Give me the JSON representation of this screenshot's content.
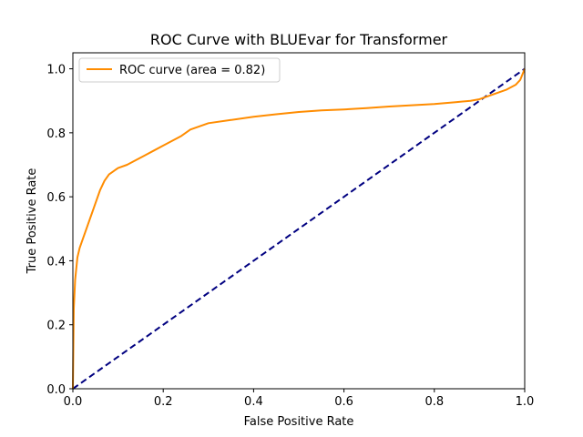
{
  "chart_data": {
    "type": "line",
    "title": "ROC Curve with BLUEvar for Transformer",
    "xlabel": "False Positive Rate",
    "ylabel": "True Positive Rate",
    "xlim": [
      0.0,
      1.0
    ],
    "ylim": [
      0.0,
      1.05
    ],
    "grid": false,
    "legend_position": "top-left",
    "x_ticks": [
      "0.0",
      "0.2",
      "0.4",
      "0.6",
      "0.8",
      "1.0"
    ],
    "y_ticks": [
      "0.0",
      "0.2",
      "0.4",
      "0.6",
      "0.8",
      "1.0"
    ],
    "series": [
      {
        "name": "ROC curve (area = 0.82)",
        "color": "#ff8c00",
        "style": "solid",
        "x": [
          0.0,
          0.002,
          0.005,
          0.01,
          0.015,
          0.02,
          0.03,
          0.04,
          0.05,
          0.06,
          0.07,
          0.08,
          0.09,
          0.1,
          0.12,
          0.14,
          0.16,
          0.18,
          0.2,
          0.22,
          0.24,
          0.25,
          0.26,
          0.28,
          0.3,
          0.35,
          0.4,
          0.45,
          0.5,
          0.55,
          0.6,
          0.65,
          0.7,
          0.75,
          0.8,
          0.85,
          0.88,
          0.9,
          0.92,
          0.94,
          0.96,
          0.98,
          0.99,
          1.0
        ],
        "y": [
          0.0,
          0.25,
          0.34,
          0.41,
          0.44,
          0.46,
          0.5,
          0.54,
          0.58,
          0.62,
          0.65,
          0.67,
          0.68,
          0.69,
          0.7,
          0.715,
          0.73,
          0.745,
          0.76,
          0.775,
          0.79,
          0.8,
          0.81,
          0.82,
          0.83,
          0.84,
          0.85,
          0.858,
          0.865,
          0.87,
          0.873,
          0.877,
          0.882,
          0.886,
          0.89,
          0.896,
          0.9,
          0.905,
          0.915,
          0.925,
          0.935,
          0.95,
          0.965,
          1.0
        ]
      },
      {
        "name": "",
        "color": "#000080",
        "style": "dashed",
        "x": [
          0.0,
          1.0
        ],
        "y": [
          0.0,
          1.0
        ]
      }
    ]
  }
}
